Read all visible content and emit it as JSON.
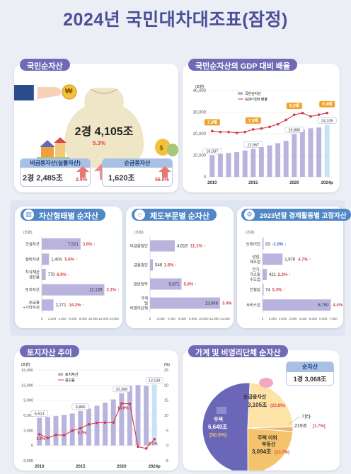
{
  "title": "2024년 국민대차대조표(잠정)",
  "net_assets": {
    "label": "국민순자산",
    "total": "2경 4,105조",
    "total_growth": "5.3%",
    "nonfin_label": "비금융자산(실물자산)",
    "nonfin_value": "2경 2,485조",
    "nonfin_growth": "2.9%",
    "fin_label": "순금융자산",
    "fin_value": "1,620조",
    "fin_growth": "56.0%",
    "coin_label": "₩"
  },
  "colors": {
    "bar": "#b9b4de",
    "bar_last": "#c9e2f5",
    "line": "#d43a4b",
    "up": "#d94848",
    "down": "#3b66b5",
    "orange": "#f0a32c"
  },
  "gdp_chart": {
    "label": "국민순자산의 GDP 대비 배율",
    "unit": "(조원)",
    "legend_bar": "국민순자산",
    "legend_line": "GDP 대비 배율",
    "y_ticks": [
      "40,000",
      "30,000",
      "20,000",
      "10,000",
      "0"
    ],
    "x_ticks": [
      "2010",
      "2015",
      "2020",
      "2024p"
    ],
    "bar_labels": [
      "10,037",
      "12,967",
      "19,880",
      "24,105"
    ],
    "ratio_labels": [
      "7.3배",
      "7.5배",
      "9.2배",
      "9.4배"
    ]
  },
  "asset_type": {
    "label": "자산형태별 순자산",
    "unit": "(조원)",
    "rows": [
      {
        "cat": "건설자산",
        "value": "7,521",
        "growth": "3.6%",
        "dir": "up"
      },
      {
        "cat": "설비자산",
        "value": "1,404",
        "growth": "5.6%",
        "dir": "up"
      },
      {
        "cat": "지식재산 생산물",
        "value": "770",
        "growth": "6.9%",
        "dir": "up"
      },
      {
        "cat": "토지자산",
        "value": "12,139",
        "growth": "2.1%",
        "dir": "up"
      },
      {
        "cat": "순금융 +기타자산",
        "value": "2,271",
        "growth": "34.2%",
        "dir": "up"
      }
    ],
    "x_ticks": [
      "0",
      "2,000",
      "4,000",
      "6,000",
      "8,000",
      "10,000",
      "12,000",
      "14,000"
    ]
  },
  "institution": {
    "label": "제도부문별 순자산",
    "unit": "(조원)",
    "rows": [
      {
        "cat": "비금융법인",
        "value": "4,619",
        "growth": "11.1%",
        "dir": "up"
      },
      {
        "cat": "금융법인",
        "value": "546",
        "growth": "1.6%",
        "dir": "up"
      },
      {
        "cat": "일반정부",
        "value": "5,872",
        "growth": "5.8%",
        "dir": "up"
      },
      {
        "cat": "가계 및 비영리단체",
        "value": "13,068",
        "growth": "3.4%",
        "dir": "up"
      }
    ],
    "x_ticks": [
      "0",
      "2,000",
      "4,000",
      "6,000",
      "8,000",
      "10,000",
      "12,000",
      "14,000"
    ]
  },
  "industry": {
    "label": "2023년말 경제활동별 고정자산",
    "unit": "(조원)",
    "rows": [
      {
        "cat": "농림어업",
        "value": "83",
        "growth": "-1.0%",
        "dir": "down"
      },
      {
        "cat": "광업, 제조업",
        "value": "1,976",
        "growth": "4.7%",
        "dir": "up"
      },
      {
        "cat": "전기, 가스및 수도업",
        "value": "421",
        "growth": "2.3%",
        "dir": "up"
      },
      {
        "cat": "건설업",
        "value": "74",
        "growth": "5.3%",
        "dir": "up"
      },
      {
        "cat": "서비스업",
        "value": "6,750",
        "growth": "4.4%",
        "dir": "up"
      }
    ],
    "x_ticks": [
      "0",
      "1,000",
      "2,000",
      "3,000",
      "4,000",
      "5,000",
      "6,000",
      "7,000"
    ]
  },
  "land": {
    "label": "토지자산 추이",
    "unit_left": "(조원)",
    "unit_right": "(%)",
    "legend_bar": "토지자산",
    "legend_line": "증감률",
    "y_left": [
      "15,000",
      "12,000",
      "9,000",
      "6,000",
      "3,000",
      "0",
      "-3,000"
    ],
    "y_right": [
      "25",
      "20",
      "15",
      "10",
      "5",
      "0",
      "-5"
    ],
    "x_ticks": [
      "2010",
      "2015",
      "2020",
      "2024p"
    ],
    "bar_labels": [
      "5,513",
      "6,866",
      "10,368",
      "12,139"
    ],
    "rate_labels": [
      "3.7%",
      "5.7%",
      "13.9%",
      "2.1%"
    ],
    "rate_label_last": "2.1%"
  },
  "household": {
    "label": "가계 및 비영리단체 순자산",
    "total_label": "순자산",
    "total_value": "1경 3,068조",
    "slices": [
      {
        "name": "주택",
        "value": "6,649조",
        "pct": "50.9%"
      },
      {
        "name": "주택 이외 부동산",
        "value": "3,094조",
        "pct": "23.7%"
      },
      {
        "name": "순금융자산",
        "value": "3,105조",
        "pct": "23.8%"
      },
      {
        "name": "기타",
        "value": "219조",
        "pct": "1.7%"
      }
    ]
  },
  "chart_data": [
    {
      "type": "bar",
      "title": "국민순자산의 GDP 대비 배율",
      "unit": "(조원)",
      "x": [
        "2010",
        "2011",
        "2012",
        "2013",
        "2014",
        "2015",
        "2016",
        "2017",
        "2018",
        "2019",
        "2020",
        "2021",
        "2022",
        "2023",
        "2024p"
      ],
      "series": [
        {
          "name": "국민순자산",
          "values": [
            10037,
            10650,
            11100,
            11500,
            12200,
            12967,
            13700,
            14600,
            15600,
            16700,
            19880,
            21800,
            22500,
            22900,
            24105
          ]
        },
        {
          "name": "GDP 대비 배율",
          "values": [
            7.3,
            7.2,
            7.2,
            7.1,
            7.2,
            7.5,
            7.6,
            7.8,
            8.1,
            8.6,
            9.2,
            9.4,
            9.0,
            9.2,
            9.4
          ]
        }
      ],
      "ylim": [
        0,
        40000
      ]
    },
    {
      "type": "bar",
      "title": "자산형태별 순자산",
      "categories": [
        "건설자산",
        "설비자산",
        "지식재산 생산물",
        "토지자산",
        "순금융 +기타자산"
      ],
      "values": [
        7521,
        1404,
        770,
        12139,
        2271
      ],
      "xlim": [
        0,
        14000
      ]
    },
    {
      "type": "bar",
      "title": "제도부문별 순자산",
      "categories": [
        "비금융법인",
        "금융법인",
        "일반정부",
        "가계 및 비영리단체"
      ],
      "values": [
        4619,
        546,
        5872,
        13068
      ],
      "xlim": [
        0,
        14000
      ]
    },
    {
      "type": "bar",
      "title": "2023년말 경제활동별 고정자산",
      "categories": [
        "농림어업",
        "광업, 제조업",
        "전기, 가스및 수도업",
        "건설업",
        "서비스업"
      ],
      "values": [
        83,
        1976,
        421,
        74,
        6750
      ],
      "xlim": [
        0,
        7000
      ]
    },
    {
      "type": "bar",
      "title": "토지자산 추이",
      "x": [
        "2010",
        "2011",
        "2012",
        "2013",
        "2014",
        "2015",
        "2016",
        "2017",
        "2018",
        "2019",
        "2020",
        "2021",
        "2022",
        "2023",
        "2024p"
      ],
      "series": [
        {
          "name": "토지자산",
          "values": [
            5513,
            5650,
            5850,
            6050,
            6350,
            6866,
            7350,
            7900,
            8500,
            9150,
            10368,
            11800,
            12000,
            11850,
            12139
          ]
        },
        {
          "name": "증감률",
          "values": [
            3.7,
            2.5,
            3.5,
            3.4,
            4.9,
            5.7,
            7.0,
            7.5,
            7.6,
            7.6,
            13.9,
            13.8,
            -0.4,
            -1.0,
            2.1
          ]
        }
      ],
      "ylim_left": [
        -3000,
        15000
      ],
      "ylim_right": [
        -5,
        25
      ]
    },
    {
      "type": "pie",
      "title": "가계 및 비영리단체 순자산",
      "categories": [
        "주택",
        "주택 이외 부동산",
        "순금융자산",
        "기타"
      ],
      "values": [
        50.9,
        23.7,
        23.8,
        1.7
      ]
    }
  ]
}
